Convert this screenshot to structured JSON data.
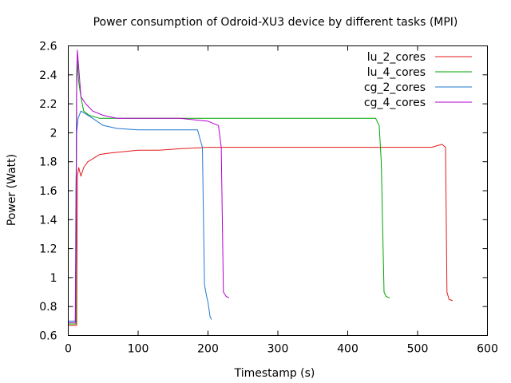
{
  "chart_data": {
    "type": "line",
    "title": "Power consumption of Odroid-XU3 device by different tasks (MPI)",
    "xlabel": "Timestamp (s)",
    "ylabel": "Power (Watt)",
    "xlim": [
      0,
      600
    ],
    "ylim": [
      0.6,
      2.6
    ],
    "xticks": [
      0,
      100,
      200,
      300,
      400,
      500,
      600
    ],
    "yticks": [
      0.6,
      0.8,
      1,
      1.2,
      1.4,
      1.6,
      1.8,
      2,
      2.2,
      2.4,
      2.6
    ],
    "xtick_labels": [
      "0",
      "100",
      "200",
      "300",
      "400",
      "500",
      "600"
    ],
    "ytick_labels": [
      "0.6",
      "0.8",
      "1",
      "1.2",
      "1.4",
      "1.6",
      "1.8",
      "2",
      "2.2",
      "2.4",
      "2.6"
    ],
    "grid": false,
    "legend_position": "top-right",
    "series": [
      {
        "name": "lu_2_cores",
        "color": "#e41a1c",
        "x": [
          0,
          12,
          13,
          15,
          18,
          22,
          28,
          35,
          45,
          60,
          80,
          100,
          130,
          160,
          200,
          250,
          300,
          350,
          400,
          450,
          500,
          520,
          535,
          540,
          542,
          545,
          550
        ],
        "y": [
          0.67,
          0.67,
          1.7,
          1.76,
          1.7,
          1.76,
          1.8,
          1.82,
          1.85,
          1.86,
          1.87,
          1.88,
          1.88,
          1.89,
          1.9,
          1.9,
          1.9,
          1.9,
          1.9,
          1.9,
          1.9,
          1.9,
          1.92,
          1.9,
          0.9,
          0.85,
          0.84
        ]
      },
      {
        "name": "lu_4_cores",
        "color": "#00a600",
        "x": [
          0,
          11,
          12,
          13,
          15,
          18,
          22,
          30,
          45,
          60,
          80,
          100,
          130,
          160,
          200,
          250,
          300,
          350,
          400,
          440,
          445,
          448,
          452,
          455,
          460
        ],
        "y": [
          0.68,
          0.68,
          2.3,
          2.5,
          2.35,
          2.25,
          2.15,
          2.12,
          2.1,
          2.1,
          2.1,
          2.1,
          2.1,
          2.1,
          2.1,
          2.1,
          2.1,
          2.1,
          2.1,
          2.1,
          2.05,
          1.8,
          0.9,
          0.87,
          0.86
        ]
      },
      {
        "name": "cg_2_cores",
        "color": "#1f78d1",
        "x": [
          0,
          10,
          11,
          12,
          14,
          18,
          25,
          35,
          50,
          70,
          100,
          130,
          160,
          185,
          192,
          195,
          198,
          200,
          203,
          205
        ],
        "y": [
          0.7,
          0.7,
          1.6,
          2.0,
          2.1,
          2.15,
          2.13,
          2.1,
          2.05,
          2.03,
          2.02,
          2.02,
          2.02,
          2.02,
          1.9,
          0.95,
          0.87,
          0.83,
          0.73,
          0.71
        ]
      },
      {
        "name": "cg_4_cores",
        "color": "#b400d0",
        "x": [
          0,
          10,
          11,
          12,
          13,
          15,
          18,
          25,
          35,
          50,
          70,
          100,
          130,
          160,
          200,
          215,
          219,
          222,
          226,
          230
        ],
        "y": [
          0.69,
          0.69,
          1.2,
          2.4,
          2.57,
          2.45,
          2.25,
          2.2,
          2.15,
          2.12,
          2.1,
          2.1,
          2.1,
          2.1,
          2.08,
          2.05,
          1.9,
          0.9,
          0.87,
          0.86
        ]
      }
    ]
  }
}
